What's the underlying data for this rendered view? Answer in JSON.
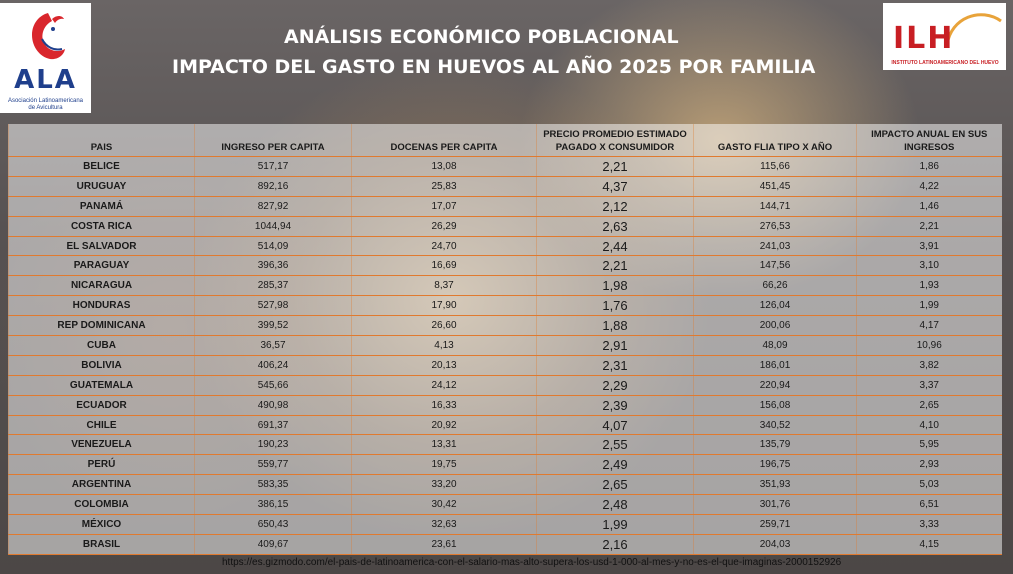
{
  "logos": {
    "left_text": "ALA",
    "left_subtitle": "Asociación Latinoamericana de Avicultura",
    "right_text": "ILH",
    "right_subtitle": "INSTITUTO LATINOAMERICANO DEL HUEVO"
  },
  "header": {
    "title": "ANÁLISIS ECONÓMICO POBLACIONAL",
    "subtitle": "IMPACTO DEL GASTO EN HUEVOS AL AÑO 2025 POR FAMILIA"
  },
  "table": {
    "columns": {
      "pais": "PAIS",
      "ingreso": "INGRESO PER CAPITA",
      "docenas": "DOCENAS PER CAPITA",
      "precio": "PRECIO PROMEDIO ESTIMADO PAGADO X CONSUMIDOR",
      "gasto": "GASTO FLIA TIPO X AÑO",
      "impacto": "IMPACTO ANUAL EN SUS INGRESOS"
    },
    "rows": [
      {
        "pais": "BELICE",
        "ingreso": "517,17",
        "docenas": "13,08",
        "precio": "2,21",
        "gasto": "115,66",
        "impacto": "1,86"
      },
      {
        "pais": "URUGUAY",
        "ingreso": "892,16",
        "docenas": "25,83",
        "precio": "4,37",
        "gasto": "451,45",
        "impacto": "4,22"
      },
      {
        "pais": "PANAMÁ",
        "ingreso": "827,92",
        "docenas": "17,07",
        "precio": "2,12",
        "gasto": "144,71",
        "impacto": "1,46"
      },
      {
        "pais": "COSTA RICA",
        "ingreso": "1044,94",
        "docenas": "26,29",
        "precio": "2,63",
        "gasto": "276,53",
        "impacto": "2,21"
      },
      {
        "pais": "EL SALVADOR",
        "ingreso": "514,09",
        "docenas": "24,70",
        "precio": "2,44",
        "gasto": "241,03",
        "impacto": "3,91"
      },
      {
        "pais": "PARAGUAY",
        "ingreso": "396,36",
        "docenas": "16,69",
        "precio": "2,21",
        "gasto": "147,56",
        "impacto": "3,10"
      },
      {
        "pais": "NICARAGUA",
        "ingreso": "285,37",
        "docenas": "8,37",
        "precio": "1,98",
        "gasto": "66,26",
        "impacto": "1,93"
      },
      {
        "pais": "HONDURAS",
        "ingreso": "527,98",
        "docenas": "17,90",
        "precio": "1,76",
        "gasto": "126,04",
        "impacto": "1,99"
      },
      {
        "pais": "REP DOMINICANA",
        "ingreso": "399,52",
        "docenas": "26,60",
        "precio": "1,88",
        "gasto": "200,06",
        "impacto": "4,17"
      },
      {
        "pais": "CUBA",
        "ingreso": "36,57",
        "docenas": "4,13",
        "precio": "2,91",
        "gasto": "48,09",
        "impacto": "10,96"
      },
      {
        "pais": "BOLIVIA",
        "ingreso": "406,24",
        "docenas": "20,13",
        "precio": "2,31",
        "gasto": "186,01",
        "impacto": "3,82"
      },
      {
        "pais": "GUATEMALA",
        "ingreso": "545,66",
        "docenas": "24,12",
        "precio": "2,29",
        "gasto": "220,94",
        "impacto": "3,37"
      },
      {
        "pais": "ECUADOR",
        "ingreso": "490,98",
        "docenas": "16,33",
        "precio": "2,39",
        "gasto": "156,08",
        "impacto": "2,65"
      },
      {
        "pais": "CHILE",
        "ingreso": "691,37",
        "docenas": "20,92",
        "precio": "4,07",
        "gasto": "340,52",
        "impacto": "4,10"
      },
      {
        "pais": "VENEZUELA",
        "ingreso": "190,23",
        "docenas": "13,31",
        "precio": "2,55",
        "gasto": "135,79",
        "impacto": "5,95"
      },
      {
        "pais": "PERÚ",
        "ingreso": "559,77",
        "docenas": "19,75",
        "precio": "2,49",
        "gasto": "196,75",
        "impacto": "2,93"
      },
      {
        "pais": "ARGENTINA",
        "ingreso": "583,35",
        "docenas": "33,20",
        "precio": "2,65",
        "gasto": "351,93",
        "impacto": "5,03"
      },
      {
        "pais": "COLOMBIA",
        "ingreso": "386,15",
        "docenas": "30,42",
        "precio": "2,48",
        "gasto": "301,76",
        "impacto": "6,51"
      },
      {
        "pais": "MÉXICO",
        "ingreso": "650,43",
        "docenas": "32,63",
        "precio": "1,99",
        "gasto": "259,71",
        "impacto": "3,33"
      },
      {
        "pais": "BRASIL",
        "ingreso": "409,67",
        "docenas": "23,61",
        "precio": "2,16",
        "gasto": "204,03",
        "impacto": "4,15"
      }
    ]
  },
  "source_url": "https://es.gizmodo.com/el-pais-de-latinoamerica-con-el-salario-mas-alto-supera-los-usd-1-000-al-mes-y-no-es-el-que-imaginas-2000152926"
}
